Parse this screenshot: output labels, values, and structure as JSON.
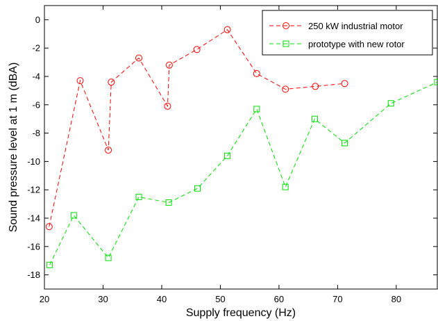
{
  "chart_data": {
    "type": "line",
    "title": "",
    "xlabel": "Supply frequency (Hz)",
    "ylabel": "Sound pressure level at 1 m (dBA)",
    "xlim": [
      20,
      87
    ],
    "ylim": [
      -19,
      1
    ],
    "xticks": [
      20,
      30,
      40,
      50,
      60,
      70,
      80
    ],
    "yticks": [
      0,
      -2,
      -4,
      -6,
      -8,
      -10,
      -12,
      -14,
      -16,
      -18
    ],
    "grid": false,
    "legend_position": "top-right",
    "series": [
      {
        "name": "250 kW industrial motor",
        "color": "#ff0000",
        "marker": "circle",
        "line_style": "dashed",
        "x": [
          20.8,
          26.1,
          30.9,
          31.4,
          36.1,
          41.0,
          41.3,
          46.0,
          51.2,
          56.2,
          61.1,
          66.2,
          71.2
        ],
        "y": [
          -14.6,
          -4.3,
          -9.2,
          -4.4,
          -2.7,
          -6.1,
          -3.2,
          -2.1,
          -0.7,
          -3.8,
          -4.9,
          -4.7,
          -4.5
        ]
      },
      {
        "name": "prototype with new rotor",
        "color": "#00dd00",
        "marker": "square",
        "line_style": "dashed",
        "x": [
          20.9,
          25.0,
          30.9,
          36.1,
          41.2,
          46.1,
          51.2,
          56.2,
          61.1,
          66.1,
          71.2,
          79.1,
          87.0
        ],
        "y": [
          -17.3,
          -13.8,
          -16.8,
          -12.5,
          -12.9,
          -11.9,
          -9.6,
          -6.3,
          -11.8,
          -7.0,
          -8.7,
          -5.9,
          -4.4
        ]
      }
    ]
  }
}
